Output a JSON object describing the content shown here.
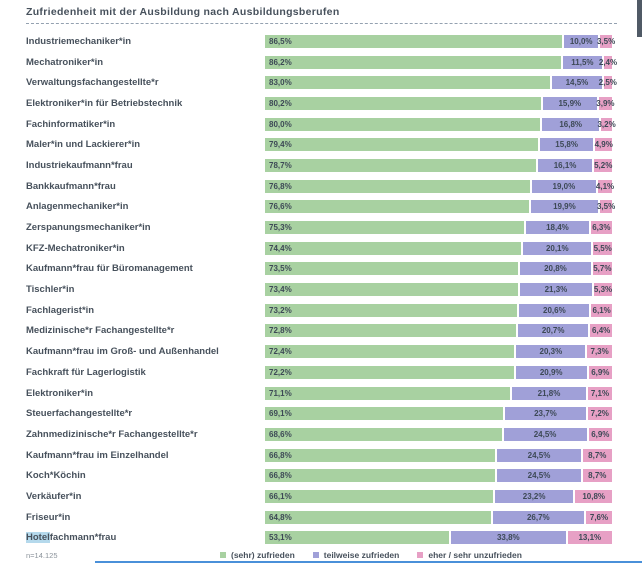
{
  "page": {
    "title": "Zufriedenheit mit der Ausbildung nach Ausbildungsberufen",
    "footnote": "n=14.125"
  },
  "legend": {
    "items": [
      {
        "label": "(sehr) zufrieden"
      },
      {
        "label": "teilweise zufrieden"
      },
      {
        "label": "eher / sehr unzufrieden"
      }
    ]
  },
  "chart_data": {
    "type": "bar",
    "orientation": "horizontal-stacked",
    "title": "Zufriedenheit mit der Ausbildung nach Ausbildungsberufen",
    "xlim": [
      0,
      100
    ],
    "unit": "%",
    "decimal_separator": ",",
    "grid": false,
    "legend_position": "bottom",
    "sample_note": "n=14.125",
    "colors": [
      "#a8d1a1",
      "#a0a0d8",
      "#e7a0c5"
    ],
    "highlight": {
      "row_index": 24,
      "text": "Hotel",
      "color": "#b5d9ec"
    },
    "categories": [
      "Industriemechaniker*in",
      "Mechatroniker*in",
      "Verwaltungsfachangestellte*r",
      "Elektroniker*in für Betriebstechnik",
      "Fachinformatiker*in",
      "Maler*in und Lackierer*in",
      "Industriekaufmann*frau",
      "Bankkaufmann*frau",
      "Anlagenmechaniker*in",
      "Zerspanungsmechaniker*in",
      "KFZ-Mechatroniker*in",
      "Kaufmann*frau für Büromanagement",
      "Tischler*in",
      "Fachlagerist*in",
      "Medizinische*r Fachangestellte*r",
      "Kaufmann*frau im Groß- und Außenhandel",
      "Fachkraft für Lagerlogistik",
      "Elektroniker*in",
      "Steuerfachangestellte*r",
      "Zahnmedizinische*r Fachangestellte*r",
      "Kaufmann*frau im Einzelhandel",
      "Koch*Köchin",
      "Verkäufer*in",
      "Friseur*in",
      "Hotelfachmann*frau"
    ],
    "series": [
      {
        "name": "(sehr) zufrieden",
        "values": [
          86.5,
          86.2,
          83.0,
          80.2,
          80.0,
          79.4,
          78.7,
          76.8,
          76.6,
          75.3,
          74.4,
          73.5,
          73.4,
          73.2,
          72.8,
          72.4,
          72.2,
          71.1,
          69.1,
          68.6,
          66.8,
          66.8,
          66.1,
          64.8,
          53.1
        ]
      },
      {
        "name": "teilweise zufrieden",
        "values": [
          10.0,
          11.5,
          14.5,
          15.9,
          16.8,
          15.8,
          16.1,
          19.0,
          19.9,
          18.4,
          20.1,
          20.8,
          21.3,
          20.6,
          20.7,
          20.3,
          20.9,
          21.8,
          23.7,
          24.5,
          24.5,
          24.5,
          23.2,
          26.7,
          33.8
        ]
      },
      {
        "name": "eher / sehr unzufrieden",
        "values": [
          3.5,
          2.4,
          2.5,
          3.9,
          3.2,
          4.9,
          5.2,
          4.1,
          3.5,
          6.3,
          5.5,
          5.7,
          5.3,
          6.1,
          6.4,
          7.3,
          6.9,
          7.1,
          7.2,
          6.9,
          8.7,
          8.7,
          10.8,
          7.6,
          13.1
        ]
      }
    ]
  }
}
